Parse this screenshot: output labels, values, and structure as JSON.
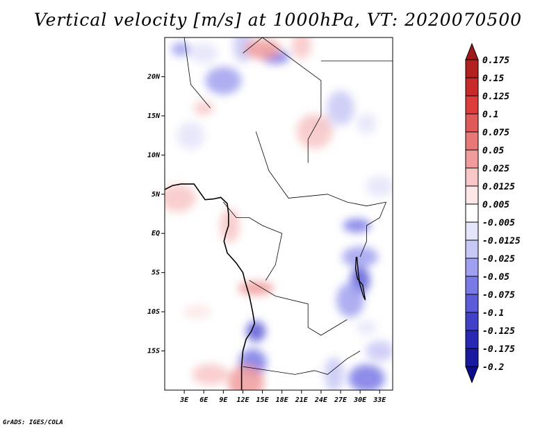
{
  "credit": "GrADS: IGES/COLA",
  "chart_data": {
    "type": "heatmap",
    "title": "Vertical velocity [m/s] at 1000hPa, VT: 2020070500",
    "variable": "Vertical velocity",
    "units": "m/s",
    "level": "1000hPa",
    "valid_time": "2020070500",
    "xlabel": "",
    "ylabel": "",
    "lon_range": [
      0,
      35
    ],
    "lat_range": [
      -20,
      25
    ],
    "x_ticks": [
      {
        "value": 3,
        "label": "3E"
      },
      {
        "value": 6,
        "label": "6E"
      },
      {
        "value": 9,
        "label": "9E"
      },
      {
        "value": 12,
        "label": "12E"
      },
      {
        "value": 15,
        "label": "15E"
      },
      {
        "value": 18,
        "label": "18E"
      },
      {
        "value": 21,
        "label": "21E"
      },
      {
        "value": 24,
        "label": "24E"
      },
      {
        "value": 27,
        "label": "27E"
      },
      {
        "value": 30,
        "label": "30E"
      },
      {
        "value": 33,
        "label": "33E"
      }
    ],
    "y_ticks": [
      {
        "value": 20,
        "label": "20N"
      },
      {
        "value": 15,
        "label": "15N"
      },
      {
        "value": 10,
        "label": "10N"
      },
      {
        "value": 5,
        "label": "5N"
      },
      {
        "value": 0,
        "label": "EQ"
      },
      {
        "value": -5,
        "label": "5S"
      },
      {
        "value": -10,
        "label": "10S"
      },
      {
        "value": -15,
        "label": "15S"
      }
    ],
    "colorbar": {
      "levels": [
        "0.175",
        "0.15",
        "0.125",
        "0.1",
        "0.075",
        "0.05",
        "0.025",
        "0.0125",
        "0.005",
        "-0.005",
        "-0.0125",
        "-0.025",
        "-0.05",
        "-0.075",
        "-0.1",
        "-0.125",
        "-0.175",
        "-0.2"
      ],
      "colors": [
        "#9e1a1a",
        "#b32020",
        "#c82a2a",
        "#dc3c3c",
        "#e05a5a",
        "#e87878",
        "#f09c9c",
        "#f8c6c6",
        "#fde6e6",
        "#ffffff",
        "#e4e4fa",
        "#c8c8f6",
        "#a0a0f0",
        "#7a7ae6",
        "#5c5cd8",
        "#4040c8",
        "#2828b4",
        "#1a1aa0",
        "#0c0c8c"
      ]
    },
    "blobs": [
      {
        "lon": 2.5,
        "lat": 23.5,
        "value": -0.05
      },
      {
        "lon": 6,
        "lat": 23,
        "value": -0.0125
      },
      {
        "lon": 9,
        "lat": 19.5,
        "value": -0.05
      },
      {
        "lon": 12,
        "lat": 24,
        "value": -0.025
      },
      {
        "lon": 17,
        "lat": 22.5,
        "value": -0.075
      },
      {
        "lon": 15,
        "lat": 23.5,
        "value": 0.025
      },
      {
        "lon": 21,
        "lat": 24,
        "value": 0.0125
      },
      {
        "lon": 27,
        "lat": 16,
        "value": -0.025
      },
      {
        "lon": 24,
        "lat": 14,
        "value": -0.0125
      },
      {
        "lon": 31,
        "lat": 14,
        "value": -0.0125
      },
      {
        "lon": 4,
        "lat": 12.5,
        "value": -0.0125
      },
      {
        "lon": 23,
        "lat": 13,
        "value": 0.0125
      },
      {
        "lon": 6,
        "lat": 16,
        "value": 0.0125
      },
      {
        "lon": 33,
        "lat": 6,
        "value": -0.0125
      },
      {
        "lon": 2,
        "lat": 4.5,
        "value": 0.0125
      },
      {
        "lon": 10,
        "lat": 1,
        "value": 0.0125
      },
      {
        "lon": 29.5,
        "lat": 1,
        "value": -0.075
      },
      {
        "lon": 30,
        "lat": -3,
        "value": -0.05
      },
      {
        "lon": 30,
        "lat": -6,
        "value": -0.1
      },
      {
        "lon": 28.5,
        "lat": -8.5,
        "value": -0.05
      },
      {
        "lon": 14,
        "lat": -7,
        "value": 0.025
      },
      {
        "lon": 14,
        "lat": -12.5,
        "value": -0.1
      },
      {
        "lon": 13.5,
        "lat": -16.5,
        "value": -0.075
      },
      {
        "lon": 12.5,
        "lat": -19,
        "value": 0.025
      },
      {
        "lon": 31,
        "lat": -12,
        "value": -0.0125
      },
      {
        "lon": 33,
        "lat": -15,
        "value": -0.025
      },
      {
        "lon": 31,
        "lat": -18.5,
        "value": -0.075
      },
      {
        "lon": 26,
        "lat": -18,
        "value": -0.025
      },
      {
        "lon": 5,
        "lat": -10,
        "value": 0.005
      },
      {
        "lon": 7,
        "lat": -18,
        "value": 0.0125
      }
    ],
    "coastline": [
      [
        0,
        5.6
      ],
      [
        1.2,
        6.1
      ],
      [
        2.5,
        6.3
      ],
      [
        4.5,
        6.3
      ],
      [
        5.6,
        5
      ],
      [
        6.2,
        4.3
      ],
      [
        7.5,
        4.4
      ],
      [
        8.6,
        4.6
      ],
      [
        9.6,
        3.8
      ],
      [
        9.8,
        2.5
      ],
      [
        9.8,
        1
      ],
      [
        9.4,
        0
      ],
      [
        9.1,
        -1
      ],
      [
        9.6,
        -2.5
      ],
      [
        11,
        -3.8
      ],
      [
        12,
        -5
      ],
      [
        12.3,
        -6
      ],
      [
        13,
        -8
      ],
      [
        13.5,
        -10
      ],
      [
        13.8,
        -11.5
      ],
      [
        13.3,
        -12.5
      ],
      [
        12.5,
        -13.5
      ],
      [
        12,
        -15
      ],
      [
        11.8,
        -17
      ],
      [
        11.8,
        -20
      ]
    ],
    "lake_coast": [
      [
        29.4,
        -3
      ],
      [
        29.3,
        -4.5
      ],
      [
        29.6,
        -5.8
      ],
      [
        30.4,
        -6.6
      ],
      [
        30.8,
        -8.5
      ],
      [
        30.5,
        -8
      ],
      [
        29.9,
        -6.3
      ],
      [
        29.7,
        -4.8
      ],
      [
        29.5,
        -3
      ]
    ],
    "borders": [
      [
        [
          3,
          25
        ],
        [
          4,
          19
        ],
        [
          7,
          16
        ]
      ],
      [
        [
          12,
          23
        ],
        [
          15,
          25
        ]
      ],
      [
        [
          15,
          25
        ],
        [
          24,
          19.5
        ],
        [
          24,
          15
        ],
        [
          22,
          12
        ],
        [
          22,
          9
        ]
      ],
      [
        [
          24,
          22
        ],
        [
          35,
          22
        ]
      ],
      [
        [
          14,
          13
        ],
        [
          16,
          8
        ],
        [
          19,
          4.5
        ],
        [
          25,
          5
        ],
        [
          28,
          4
        ],
        [
          31,
          3.5
        ],
        [
          34,
          4
        ]
      ],
      [
        [
          9,
          4
        ],
        [
          11,
          2
        ],
        [
          13,
          2
        ],
        [
          15,
          1
        ],
        [
          18,
          0
        ],
        [
          17,
          -4
        ],
        [
          15.5,
          -6
        ]
      ],
      [
        [
          13,
          -6
        ],
        [
          17,
          -8
        ],
        [
          22,
          -9
        ],
        [
          22,
          -12
        ],
        [
          24,
          -13
        ],
        [
          28,
          -11
        ]
      ],
      [
        [
          12,
          -17
        ],
        [
          20,
          -18
        ],
        [
          23,
          -17.5
        ],
        [
          25,
          -18
        ],
        [
          28,
          -16
        ],
        [
          30,
          -15
        ]
      ],
      [
        [
          30,
          -3
        ],
        [
          31,
          -1
        ],
        [
          31,
          1
        ],
        [
          33,
          2
        ],
        [
          34,
          4
        ]
      ]
    ]
  }
}
